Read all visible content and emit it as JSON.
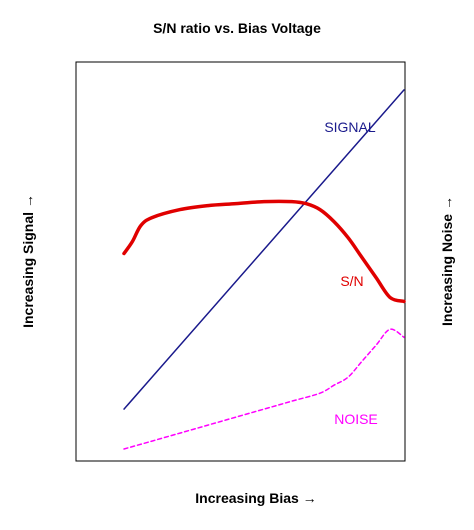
{
  "chart_data": {
    "type": "line",
    "title": "S/N ratio vs. Bias Voltage",
    "xlabel": "Increasing Bias →",
    "ylabel": "Increasing Signal →",
    "ylabel_right": "Increasing Noise →",
    "xlim": [
      0,
      10
    ],
    "ylim": [
      0,
      10
    ],
    "grid": false,
    "legend": "none (series labeled inline)",
    "series": [
      {
        "name": "SIGNAL",
        "color": "#1a1a8c",
        "style": "solid",
        "x": [
          0,
          10
        ],
        "y": [
          1.3,
          9.3
        ]
      },
      {
        "name": "S/N",
        "color": "#e00000",
        "style": "solid",
        "x": [
          0,
          0.3,
          0.6,
          1.0,
          2.0,
          3.0,
          4.0,
          5.0,
          6.0,
          6.5,
          7.0,
          7.5,
          8.0,
          8.5,
          9.0,
          9.5,
          10.0
        ],
        "y": [
          5.2,
          5.5,
          5.9,
          6.1,
          6.3,
          6.4,
          6.45,
          6.5,
          6.5,
          6.45,
          6.3,
          6.0,
          5.6,
          5.1,
          4.6,
          4.1,
          4.0
        ]
      },
      {
        "name": "NOISE",
        "color": "#ff00ff",
        "style": "dashed",
        "x": [
          0,
          1,
          2,
          3,
          4,
          5,
          6,
          7,
          7.5,
          8,
          8.5,
          9,
          9.5,
          10
        ],
        "y": [
          0.3,
          0.5,
          0.7,
          0.9,
          1.1,
          1.3,
          1.5,
          1.7,
          1.9,
          2.1,
          2.5,
          2.9,
          3.3,
          3.1
        ]
      }
    ]
  }
}
